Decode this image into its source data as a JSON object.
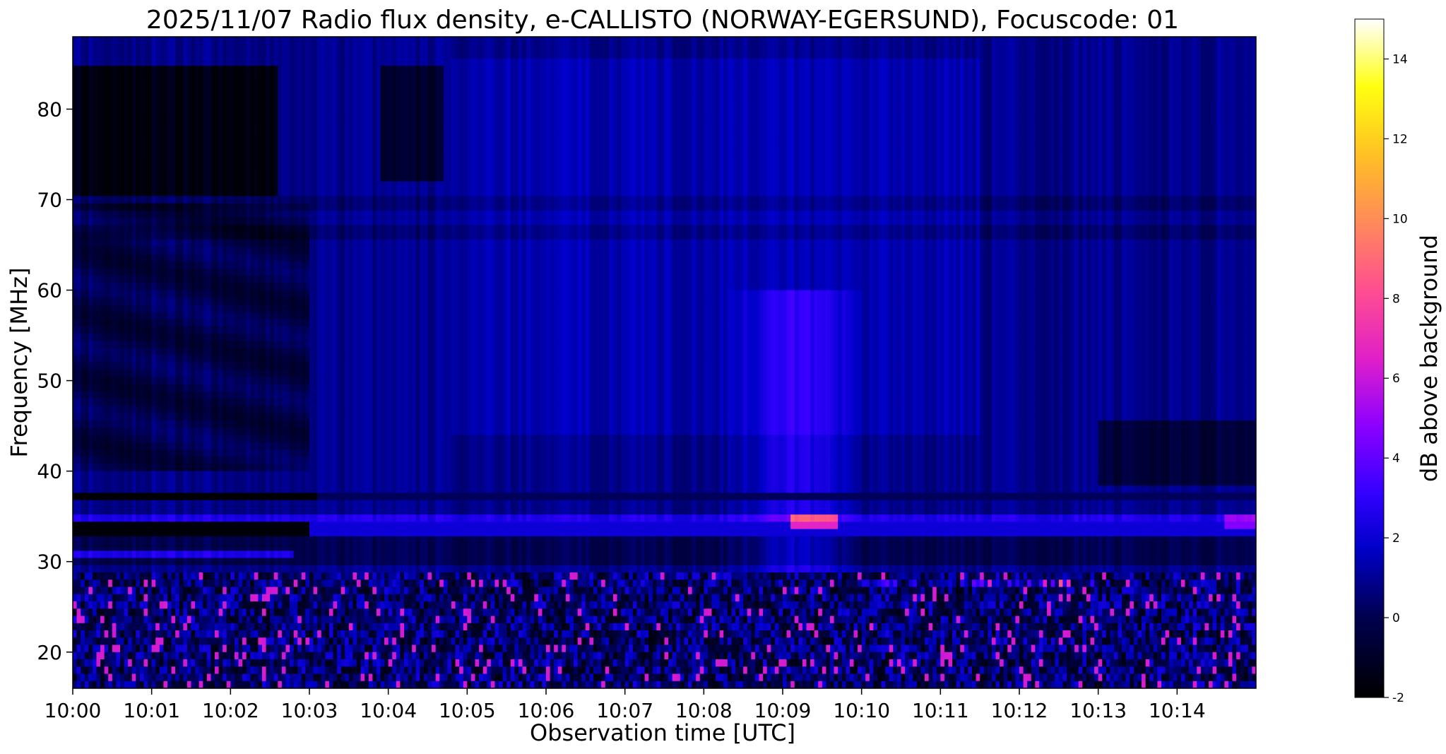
{
  "chart_data": {
    "type": "heatmap",
    "title": "2025/11/07  Radio flux density, e-CALLISTO (NORWAY-EGERSUND), Focuscode: 01",
    "xlabel": "Observation time [UTC]",
    "ylabel": "Frequency [MHz]",
    "x_ticks": [
      "10:00",
      "10:01",
      "10:02",
      "10:03",
      "10:04",
      "10:05",
      "10:06",
      "10:07",
      "10:08",
      "10:09",
      "10:10",
      "10:11",
      "10:12",
      "10:13",
      "10:14"
    ],
    "x_range_minutes": [
      0,
      15
    ],
    "y_ticks": [
      20,
      30,
      40,
      50,
      60,
      70,
      80
    ],
    "y_range": [
      16,
      88
    ],
    "colormap": "gnuplot2",
    "colorbar": {
      "label": "dB above background",
      "ticks": [
        -2,
        0,
        2,
        4,
        6,
        8,
        10,
        12,
        14
      ],
      "range": [
        -2,
        15
      ]
    },
    "features": {
      "horizontal_bands_mhz": [
        33.5,
        34.5,
        37.5,
        31
      ],
      "enhanced_region": {
        "time_range": [
          "10:08",
          "10:10"
        ],
        "freq_range_mhz": [
          28,
          60
        ],
        "level_db": 3
      },
      "noisy_region_mhz": [
        16,
        30
      ],
      "peak_level_db": 10
    }
  }
}
